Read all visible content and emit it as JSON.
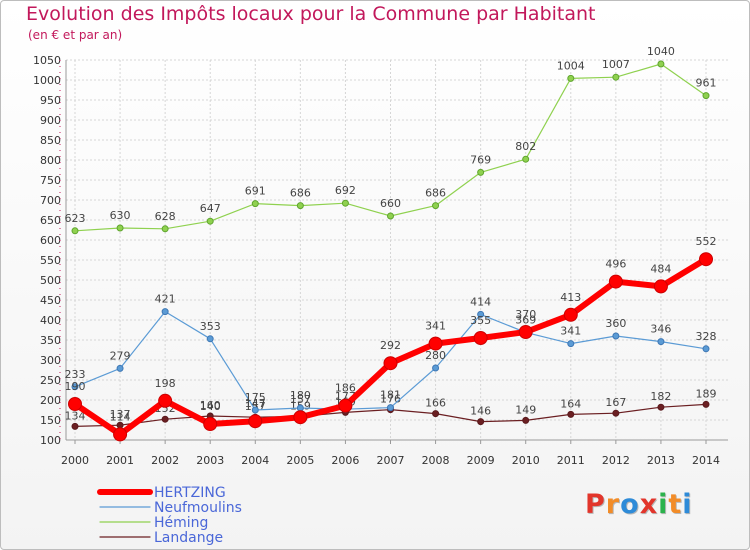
{
  "title": "Evolution des Impôts locaux pour la Commune par Habitant",
  "subtitle": "(en € et par an)",
  "logo_text": "Proxiti",
  "chart_data": {
    "type": "line",
    "title": "Evolution des Impôts locaux pour la Commune par Habitant",
    "subtitle": "(en € et par an)",
    "xlabel": "",
    "ylabel": "",
    "x": [
      2000,
      2001,
      2002,
      2003,
      2004,
      2005,
      2006,
      2007,
      2008,
      2009,
      2010,
      2011,
      2012,
      2013,
      2014
    ],
    "ylim": [
      100,
      1050
    ],
    "yticks": [
      100,
      150,
      200,
      250,
      300,
      350,
      400,
      450,
      500,
      550,
      600,
      650,
      700,
      750,
      800,
      850,
      900,
      950,
      1000,
      1050
    ],
    "grid": true,
    "legend_position": "bottom-left",
    "series": [
      {
        "name": "Landange",
        "color": "#6b1f22",
        "values": [
          134,
          137,
          152,
          160,
          157,
          159,
          169,
          176,
          166,
          146,
          149,
          164,
          167,
          182,
          189
        ]
      },
      {
        "name": "Neufmoulins",
        "color": "#5b9bd5",
        "values": [
          233,
          279,
          421,
          353,
          175,
          180,
          177,
          181,
          280,
          414,
          369,
          341,
          360,
          346,
          328
        ]
      },
      {
        "name": "Héming",
        "color": "#8fd14f",
        "values": [
          623,
          630,
          628,
          647,
          691,
          686,
          692,
          660,
          686,
          769,
          802,
          1004,
          1007,
          1040,
          961
        ]
      },
      {
        "name": "HERTZING",
        "color": "#ff0000",
        "values": [
          190,
          114,
          198,
          140,
          147,
          157,
          186,
          292,
          341,
          355,
          370,
          413,
          496,
          484,
          552
        ]
      }
    ]
  }
}
